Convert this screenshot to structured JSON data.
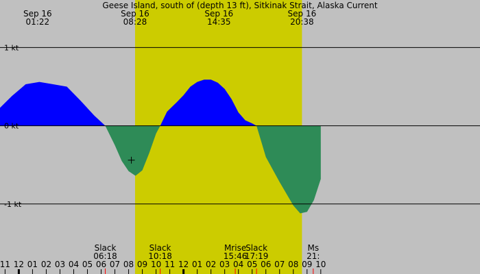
{
  "colors": {
    "night": "#c0c0c0",
    "day": "#cccc00",
    "flood": "#0000ff",
    "ebb": "#2e8b57",
    "line": "#000000",
    "marker": "#ff0000"
  },
  "chart_data": {
    "type": "area",
    "title": "Geese Island, south of (depth 13 ft), Sitkinak Strait, Alaska Current",
    "ylim": [
      -1.65,
      1.45
    ],
    "xlim": [
      -1.37,
      33.6
    ],
    "y_lines": [
      {
        "value": 1,
        "label": "1 kt"
      },
      {
        "value": 0,
        "label": "0 kt"
      },
      {
        "value": -1,
        "label": "-1 kt"
      }
    ],
    "daylight": {
      "start": 8.47,
      "end": 20.63
    },
    "sun_events": [
      {
        "date": "Sep 16",
        "time": "01:22",
        "x": 1.37
      },
      {
        "date": "Sep 16",
        "time": "08:28",
        "x": 8.47
      },
      {
        "date": "Sep 16",
        "time": "14:35",
        "x": 14.58
      },
      {
        "date": "Sep 16",
        "time": "20:38",
        "x": 20.63
      }
    ],
    "events": [
      {
        "label": "Slack",
        "time": "06:18",
        "x": 6.3
      },
      {
        "label": "Slack",
        "time": "10:18",
        "x": 10.3
      },
      {
        "label": "Mrise",
        "time": "15:46",
        "x": 15.77
      },
      {
        "label": "Slack",
        "time": "17:19",
        "x": 17.32
      },
      {
        "label": "Ms",
        "time": "21:",
        "x": 21.45
      }
    ],
    "hour_ticks": {
      "start": -1,
      "labels": [
        "11",
        "12",
        "01",
        "02",
        "03",
        "04",
        "05",
        "06",
        "07",
        "08",
        "09",
        "10",
        "11",
        "12",
        "01",
        "02",
        "03",
        "04",
        "05",
        "06",
        "07",
        "08",
        "09",
        "10"
      ]
    },
    "series": [
      {
        "x": [
          -1.37,
          -0.5,
          0.5,
          1.5,
          2.5,
          3.5,
          4.5,
          5.5,
          6.3,
          7.0,
          7.5,
          8.0,
          8.5,
          9.0,
          9.5,
          10.0,
          10.3,
          10.8,
          11.5,
          12.0,
          12.5,
          13.0,
          13.5,
          14.0,
          14.5,
          15.0,
          15.5,
          16.0,
          16.5,
          17.0,
          17.32,
          18.0,
          19.0,
          20.0,
          20.5,
          21.0,
          21.5,
          22.0
        ],
        "values": [
          0.23,
          0.38,
          0.53,
          0.56,
          0.53,
          0.5,
          0.32,
          0.13,
          0.0,
          -0.25,
          -0.45,
          -0.58,
          -0.64,
          -0.57,
          -0.35,
          -0.1,
          0.0,
          0.18,
          0.3,
          0.39,
          0.5,
          0.56,
          0.59,
          0.59,
          0.55,
          0.47,
          0.34,
          0.17,
          0.07,
          0.03,
          0.0,
          -0.4,
          -0.72,
          -1.02,
          -1.12,
          -1.1,
          -0.95,
          -0.68
        ]
      }
    ],
    "cursor": {
      "x": 8.2,
      "y": -0.44
    }
  }
}
